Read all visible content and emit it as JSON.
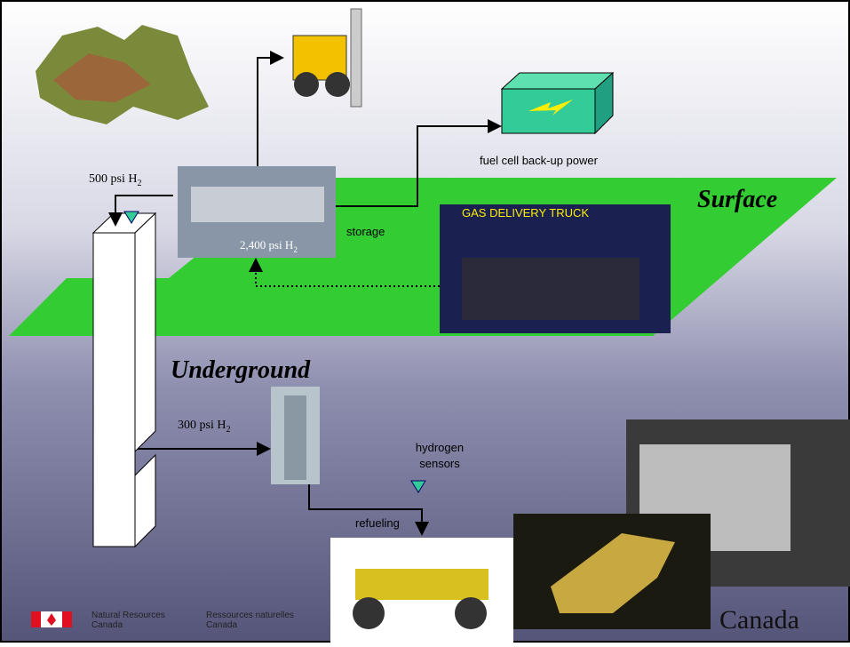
{
  "labels": {
    "pressure_top": {
      "text": "500 psi H",
      "sub": "2"
    },
    "pressure_storage": {
      "text": "2,400 psi H",
      "sub": "2"
    },
    "storage": "storage",
    "fuel_cell": "fuel cell back-up power",
    "surface": "Surface",
    "gas_truck": "GAS DELIVERY TRUCK",
    "underground": "Underground",
    "pressure_underground": {
      "text": "300 psi H",
      "sub": "2"
    },
    "sensors": [
      "hydrogen",
      "sensors"
    ],
    "refueling": "refueling"
  },
  "footer": {
    "department_en": [
      "Natural Resources",
      "Canada"
    ],
    "department_fr": [
      "Ressources naturelles",
      "Canada"
    ],
    "wordmark": "Canada"
  }
}
